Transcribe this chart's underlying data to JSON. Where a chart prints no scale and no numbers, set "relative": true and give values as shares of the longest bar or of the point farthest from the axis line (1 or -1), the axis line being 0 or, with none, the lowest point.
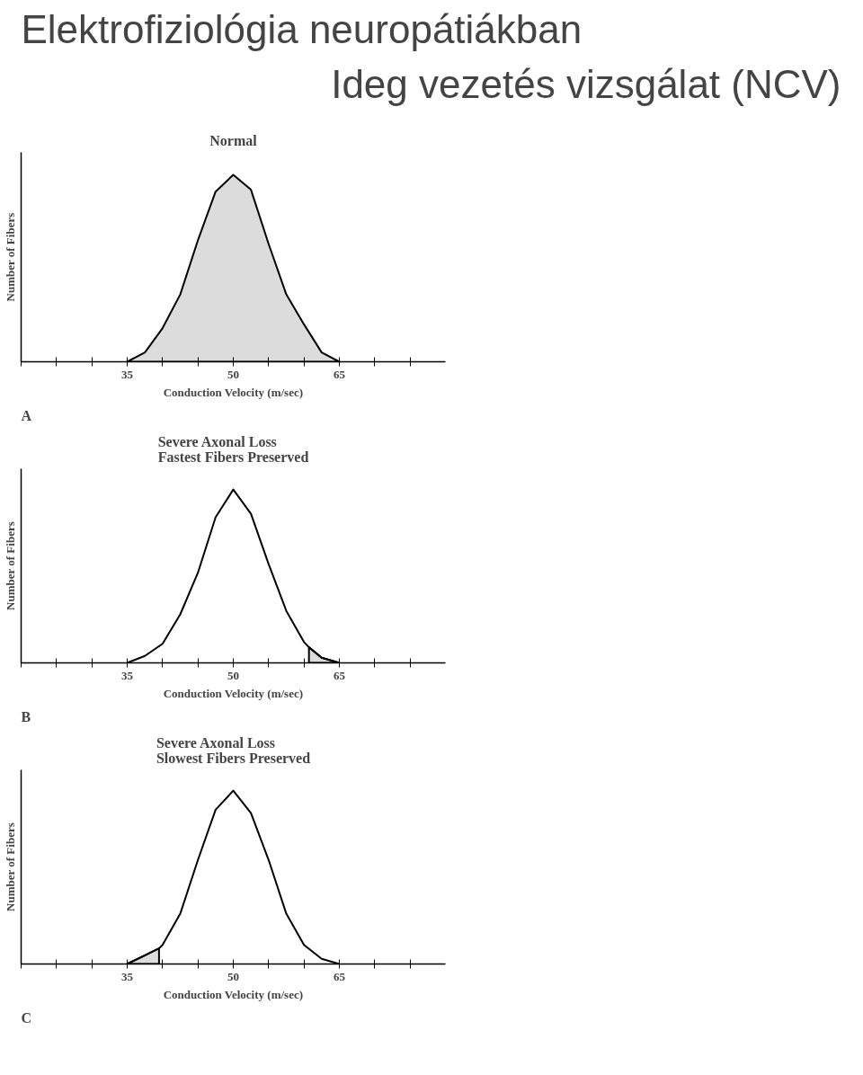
{
  "chart_data": [
    {
      "type": "other",
      "title": "Elektrofiziológia neuropátiákban",
      "subtitle": "Ideg vezetés vizsgálat (NCV)"
    },
    {
      "type": "area",
      "title": "Normal",
      "xlabel": "Conduction Velocity (m/sec)",
      "ylabel": "Number of Fibers",
      "annotations": [
        "A"
      ],
      "relative": true,
      "grid": false,
      "xlim": [
        20,
        80
      ],
      "xticks": [
        {
          "value": 20,
          "label": null
        },
        {
          "value": 25,
          "label": null
        },
        {
          "value": 30,
          "label": null
        },
        35,
        {
          "value": 40,
          "label": null
        },
        {
          "value": 45,
          "label": null
        },
        50,
        {
          "value": 55,
          "label": null
        },
        {
          "value": 60,
          "label": null
        },
        65,
        {
          "value": 70,
          "label": null
        },
        {
          "value": 75,
          "label": null
        }
      ],
      "series": [
        {
          "type": "area",
          "color": "#dcdcdc",
          "x": [
            35,
            37.5,
            40,
            42.5,
            45,
            47.5,
            50,
            52.5,
            55,
            57.5,
            60,
            62.5,
            65
          ],
          "values": [
            0,
            0.05,
            0.18,
            0.36,
            0.65,
            0.91,
            1,
            0.92,
            0.63,
            0.36,
            0.2,
            0.05,
            0
          ]
        }
      ]
    },
    {
      "type": "line",
      "title": "Severe Axonal Loss\nFastest Fibers Preserved",
      "xlabel": "Conduction Velocity (m/sec)",
      "ylabel": "Number of Fibers",
      "annotations": [
        "B"
      ],
      "relative": true,
      "grid": false,
      "xlim": [
        20,
        80
      ],
      "xticks": [
        {
          "value": 20,
          "label": null
        },
        {
          "value": 25,
          "label": null
        },
        {
          "value": 30,
          "label": null
        },
        35,
        {
          "value": 40,
          "label": null
        },
        {
          "value": 45,
          "label": null
        },
        50,
        {
          "value": 55,
          "label": null
        },
        {
          "value": 60,
          "label": null
        },
        65,
        {
          "value": 70,
          "label": null
        },
        {
          "value": 75,
          "label": null
        }
      ],
      "series": [
        {
          "type": "area",
          "color": "#dcdcdc",
          "x": [
            60.7,
            62.5,
            65
          ],
          "values": [
            0.09,
            0.03,
            0
          ]
        },
        {
          "type": "line",
          "color": "#000000",
          "x": [
            35,
            37.5,
            40,
            42.5,
            45,
            47.5,
            50,
            52.5,
            55,
            57.5,
            60,
            60.7,
            62.5,
            65
          ],
          "values": [
            0,
            0.04,
            0.11,
            0.28,
            0.52,
            0.84,
            1,
            0.86,
            0.57,
            0.3,
            0.12,
            0.09,
            0.03,
            0
          ]
        }
      ]
    },
    {
      "type": "line",
      "title": "Severe Axonal Loss\nSlowest Fibers Preserved",
      "xlabel": "Conduction Velocity (m/sec)",
      "ylabel": "Number of Fibers",
      "annotations": [
        "C"
      ],
      "relative": true,
      "grid": false,
      "xlim": [
        20,
        80
      ],
      "xticks": [
        {
          "value": 20,
          "label": null
        },
        {
          "value": 25,
          "label": null
        },
        {
          "value": 30,
          "label": null
        },
        35,
        {
          "value": 40,
          "label": null
        },
        {
          "value": 45,
          "label": null
        },
        50,
        {
          "value": 55,
          "label": null
        },
        {
          "value": 60,
          "label": null
        },
        65,
        {
          "value": 70,
          "label": null
        },
        {
          "value": 75,
          "label": null
        }
      ],
      "series": [
        {
          "type": "area",
          "color": "#dcdcdc",
          "x": [
            35,
            37.5,
            39.5
          ],
          "values": [
            0,
            0.05,
            0.09
          ]
        },
        {
          "type": "line",
          "color": "#000000",
          "x": [
            35,
            37.5,
            39.5,
            40,
            42.5,
            45,
            47.5,
            50,
            52.5,
            55,
            57.5,
            60,
            62.5,
            65
          ],
          "values": [
            0,
            0.05,
            0.09,
            0.11,
            0.29,
            0.6,
            0.89,
            1,
            0.87,
            0.6,
            0.29,
            0.11,
            0.03,
            0
          ]
        }
      ]
    }
  ]
}
